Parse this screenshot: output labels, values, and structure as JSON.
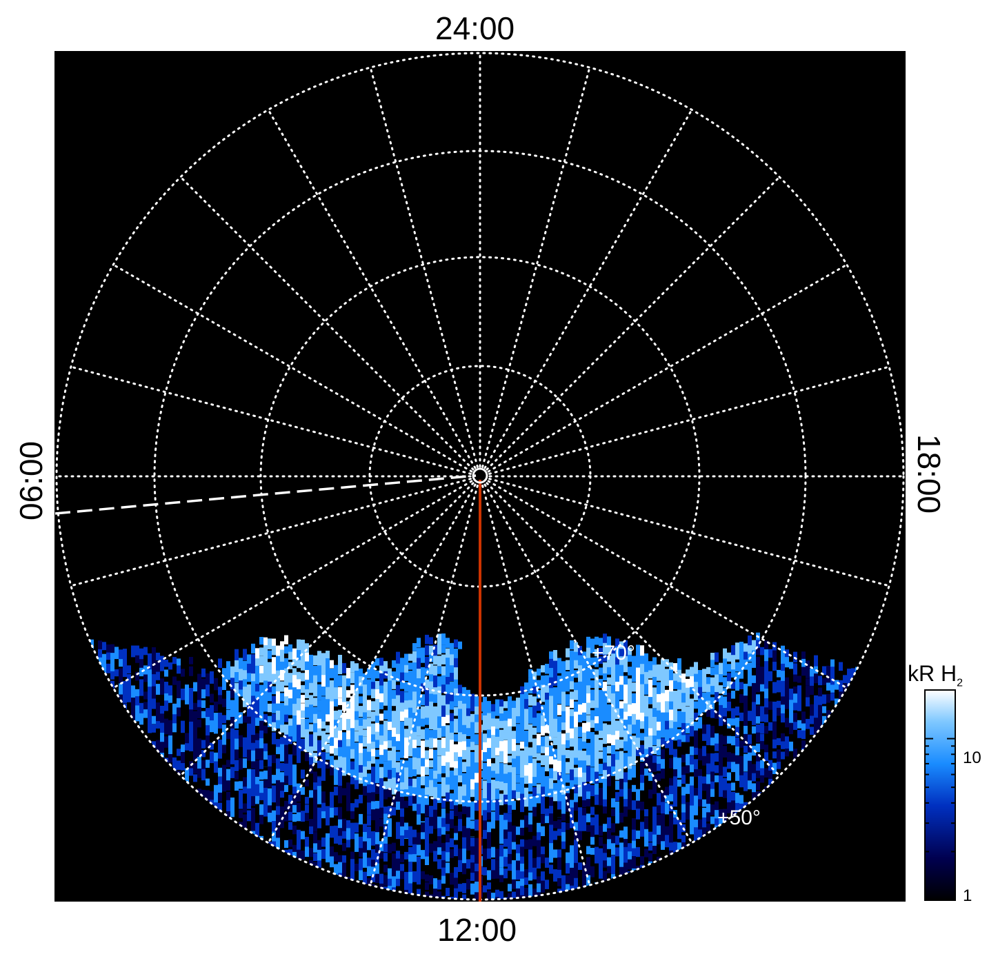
{
  "projection": {
    "type": "polar",
    "local_time_labels": {
      "top": "24:00",
      "bottom": "12:00",
      "left": "06:00",
      "right": "18:00"
    },
    "latitude_labels": [
      "+70°",
      "+50°"
    ],
    "latitude_circles_deg": [
      80,
      70,
      60,
      50
    ],
    "meridian_step_hours": 1,
    "grid_style": "dotted",
    "grid_color": "#ffffff",
    "background": "#000000",
    "noon_meridian_color": "#cc3300",
    "dashed_line_color": "#ffffff"
  },
  "colorbar": {
    "title": "kR H",
    "title_subscript": "2",
    "scale": "log",
    "range": [
      1,
      20
    ],
    "tick_labels": [
      "10",
      "1"
    ],
    "colors": [
      "#000000",
      "#000050",
      "#0030c0",
      "#1a8cff",
      "#7fc8ff",
      "#ffffff"
    ]
  }
}
